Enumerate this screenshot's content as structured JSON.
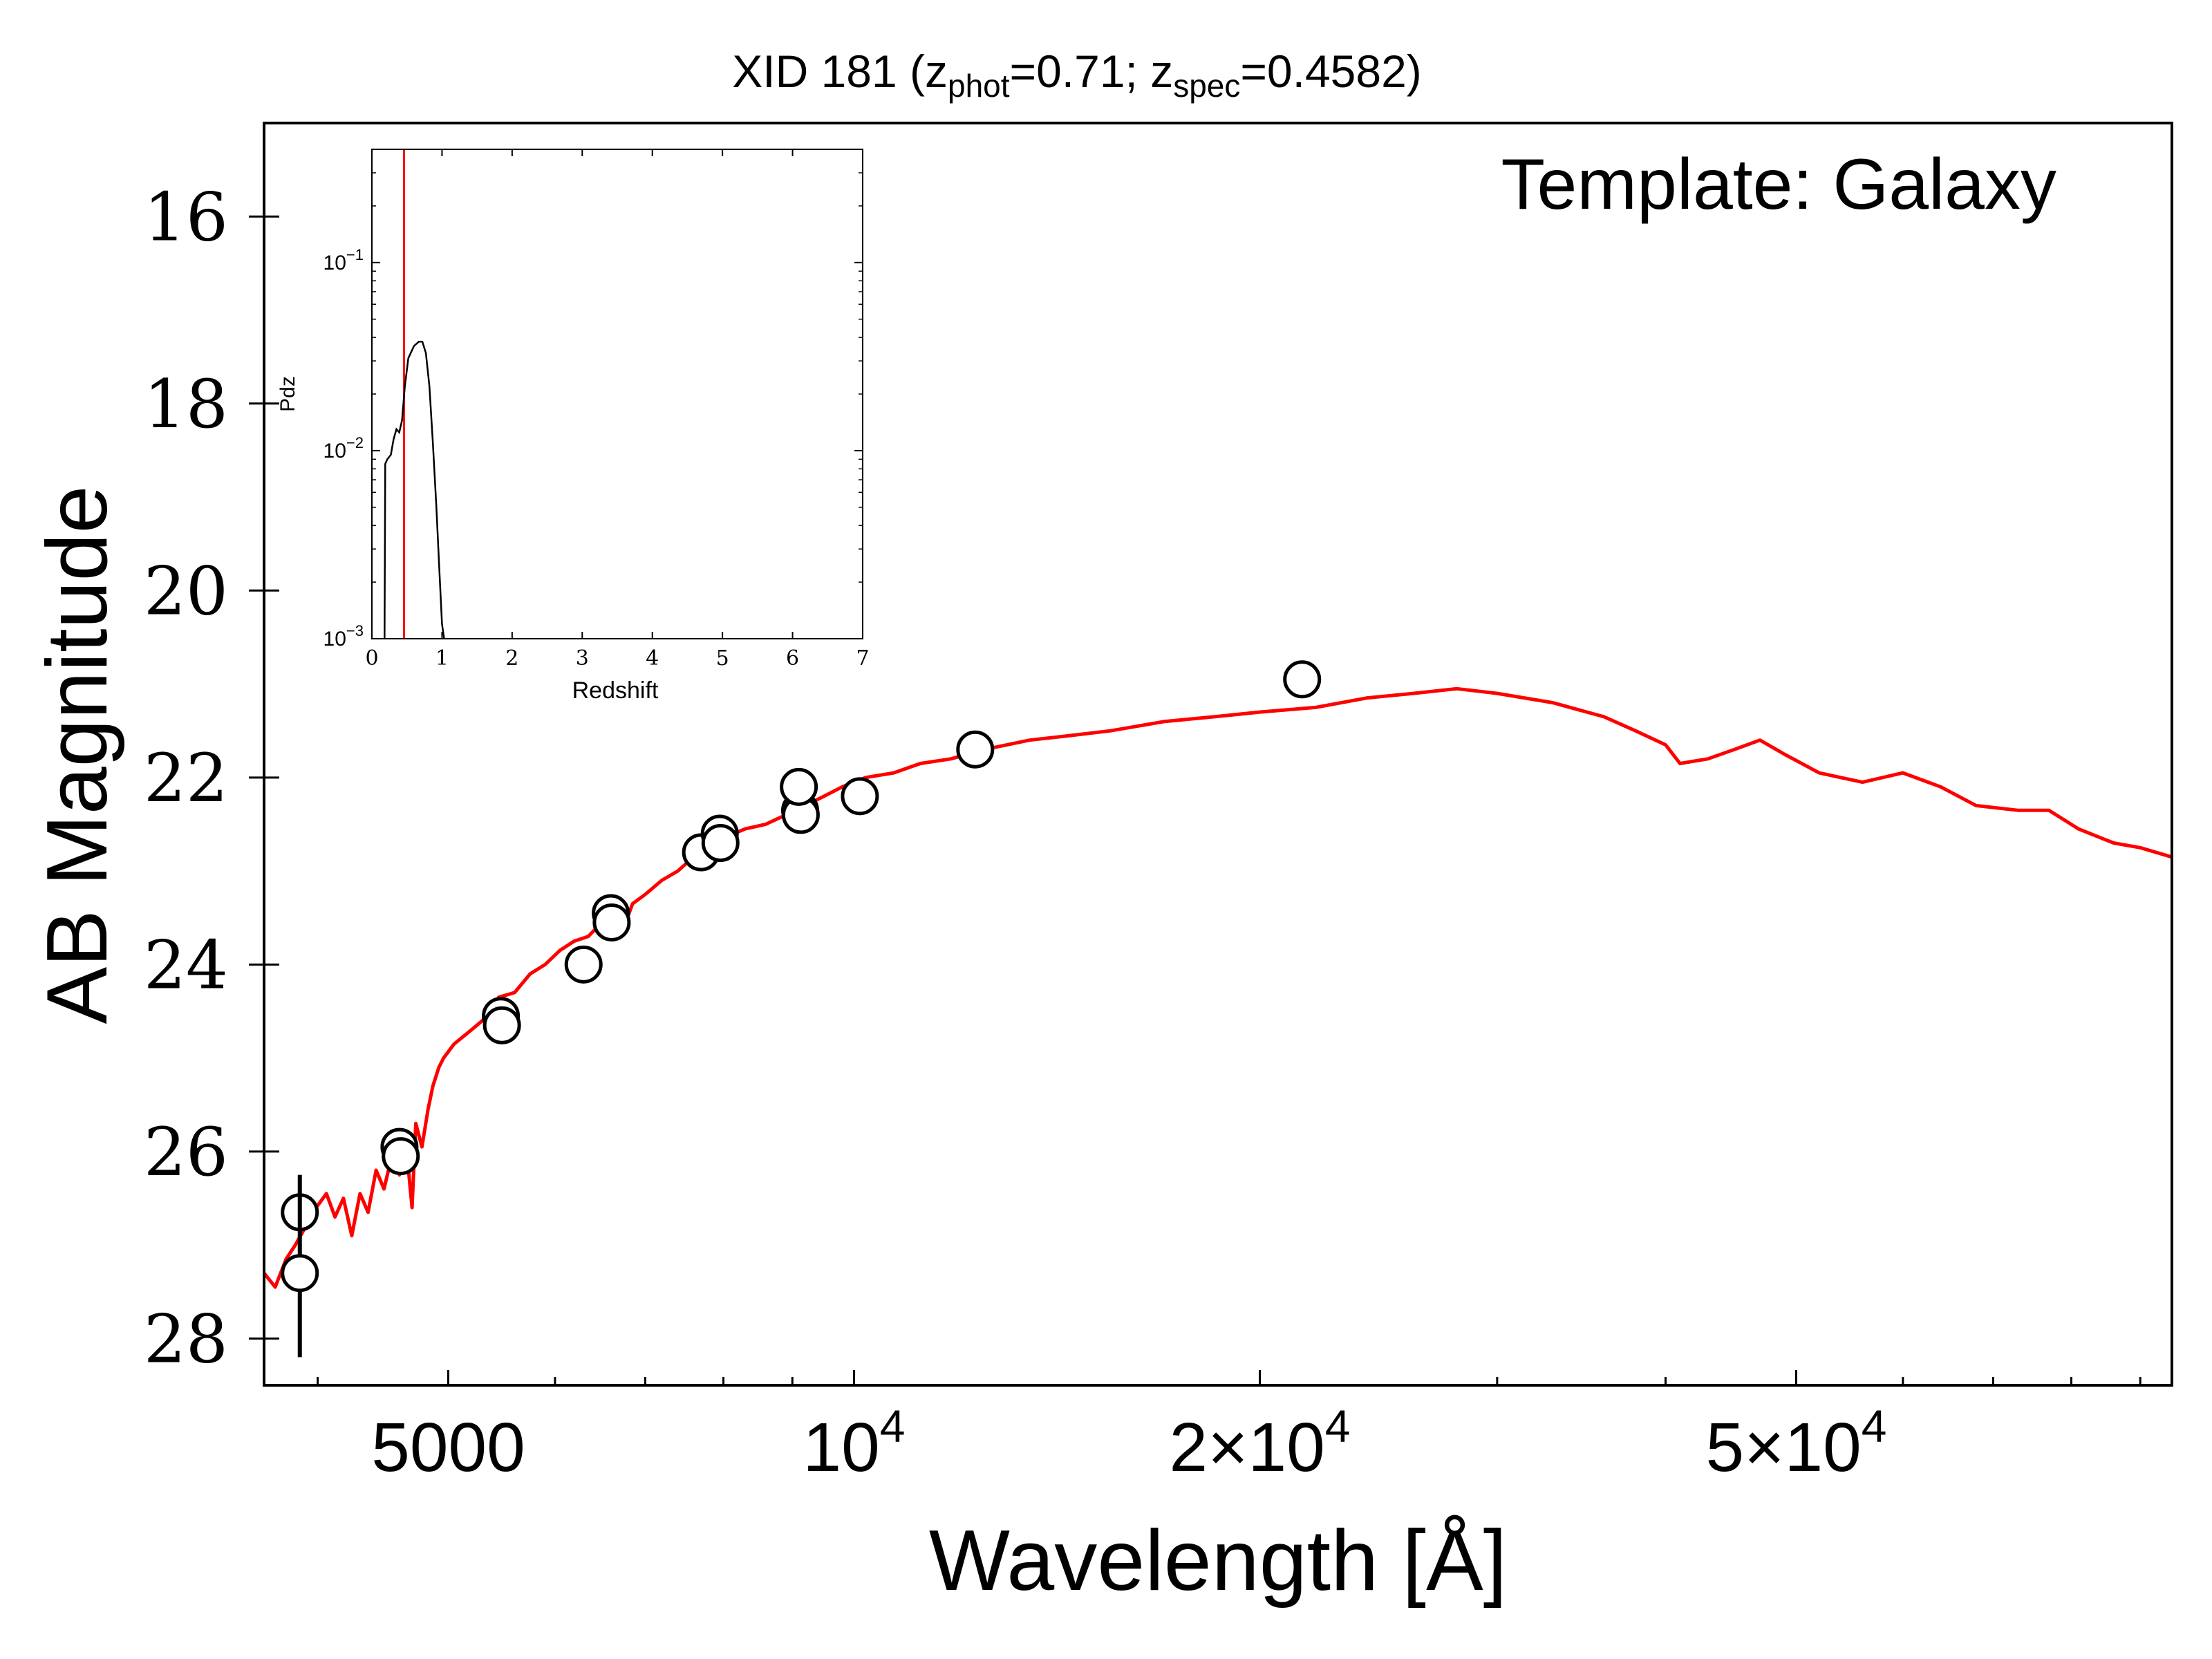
{
  "chart_data": [
    {
      "type": "scatter",
      "title": {
        "prefix": "XID 181 (z",
        "phot_sub": "phot",
        "phot_value": "=0.71; z",
        "spec_sub": "spec",
        "spec_value": "=0.4582)"
      },
      "annotation": "Template: Galaxy",
      "xlabel": "Wavelength [Å]",
      "ylabel": "AB Magnitude",
      "xscale": "log",
      "xlim": [
        3650,
        95000
      ],
      "ylim": [
        28.5,
        15.0
      ],
      "y_inverted": true,
      "xticks": [
        {
          "value": 5000,
          "label": "5000"
        },
        {
          "value": 10000,
          "label": "10",
          "sup": "4"
        },
        {
          "value": 20000,
          "label": "2×10",
          "sup": "4"
        },
        {
          "value": 50000,
          "label": "5×10",
          "sup": "4"
        }
      ],
      "yticks": [
        16,
        18,
        20,
        22,
        24,
        26,
        28
      ],
      "series": [
        {
          "kind": "model",
          "color": "#ff0000",
          "points": [
            [
              3650,
              27.3
            ],
            [
              3720,
              27.45
            ],
            [
              3790,
              27.15
            ],
            [
              3850,
              27.0
            ],
            [
              3920,
              26.8
            ],
            [
              3990,
              26.6
            ],
            [
              4060,
              26.45
            ],
            [
              4120,
              26.7
            ],
            [
              4180,
              26.5
            ],
            [
              4240,
              26.9
            ],
            [
              4300,
              26.45
            ],
            [
              4360,
              26.65
            ],
            [
              4420,
              26.2
            ],
            [
              4480,
              26.4
            ],
            [
              4540,
              26.05
            ],
            [
              4600,
              26.25
            ],
            [
              4650,
              25.9
            ],
            [
              4700,
              26.6
            ],
            [
              4730,
              25.7
            ],
            [
              4780,
              25.95
            ],
            [
              4830,
              25.55
            ],
            [
              4870,
              25.3
            ],
            [
              4920,
              25.1
            ],
            [
              4960,
              25.0
            ],
            [
              5050,
              24.85
            ],
            [
              5150,
              24.75
            ],
            [
              5250,
              24.65
            ],
            [
              5350,
              24.55
            ],
            [
              5450,
              24.35
            ],
            [
              5600,
              24.3
            ],
            [
              5750,
              24.1
            ],
            [
              5900,
              24.0
            ],
            [
              6050,
              23.85
            ],
            [
              6200,
              23.75
            ],
            [
              6350,
              23.7
            ],
            [
              6500,
              23.55
            ],
            [
              6650,
              23.45
            ],
            [
              6750,
              23.6
            ],
            [
              6850,
              23.35
            ],
            [
              7000,
              23.25
            ],
            [
              7200,
              23.1
            ],
            [
              7400,
              23.0
            ],
            [
              7600,
              22.85
            ],
            [
              7800,
              22.75
            ],
            [
              8000,
              22.65
            ],
            [
              8300,
              22.55
            ],
            [
              8600,
              22.5
            ],
            [
              8900,
              22.4
            ],
            [
              9200,
              22.3
            ],
            [
              9500,
              22.2
            ],
            [
              9800,
              22.1
            ],
            [
              10200,
              22.0
            ],
            [
              10700,
              21.95
            ],
            [
              11200,
              21.85
            ],
            [
              11800,
              21.8
            ],
            [
              12500,
              21.7
            ],
            [
              13500,
              21.6
            ],
            [
              14500,
              21.55
            ],
            [
              15500,
              21.5
            ],
            [
              17000,
              21.4
            ],
            [
              18500,
              21.35
            ],
            [
              20000,
              21.3
            ],
            [
              22000,
              21.25
            ],
            [
              24000,
              21.15
            ],
            [
              26000,
              21.1
            ],
            [
              28000,
              21.05
            ],
            [
              30000,
              21.1
            ],
            [
              33000,
              21.2
            ],
            [
              36000,
              21.35
            ],
            [
              38000,
              21.5
            ],
            [
              40000,
              21.65
            ],
            [
              41000,
              21.85
            ],
            [
              43000,
              21.8
            ],
            [
              45000,
              21.7
            ],
            [
              47000,
              21.6
            ],
            [
              49000,
              21.75
            ],
            [
              52000,
              21.95
            ],
            [
              56000,
              22.05
            ],
            [
              60000,
              21.95
            ],
            [
              64000,
              22.1
            ],
            [
              68000,
              22.3
            ],
            [
              73000,
              22.35
            ],
            [
              77000,
              22.35
            ],
            [
              81000,
              22.55
            ],
            [
              86000,
              22.7
            ],
            [
              90000,
              22.75
            ],
            [
              95000,
              22.85
            ]
          ]
        },
        {
          "kind": "observed",
          "color": "#000000",
          "points": [
            {
              "x": 3880,
              "y": 26.65
            },
            {
              "x": 3880,
              "y": 27.3,
              "yerr": [
                26.25,
                28.2
              ]
            },
            {
              "x": 4600,
              "y": 25.95
            },
            {
              "x": 4610,
              "y": 26.05
            },
            {
              "x": 5470,
              "y": 24.55
            },
            {
              "x": 5480,
              "y": 24.65
            },
            {
              "x": 6300,
              "y": 24.0
            },
            {
              "x": 6600,
              "y": 23.45
            },
            {
              "x": 6610,
              "y": 23.55
            },
            {
              "x": 7700,
              "y": 22.8
            },
            {
              "x": 7950,
              "y": 22.6
            },
            {
              "x": 7960,
              "y": 22.7
            },
            {
              "x": 9120,
              "y": 22.35
            },
            {
              "x": 9130,
              "y": 22.4
            },
            {
              "x": 9100,
              "y": 22.1
            },
            {
              "x": 10100,
              "y": 22.2
            },
            {
              "x": 12300,
              "y": 21.7
            },
            {
              "x": 21500,
              "y": 20.95
            }
          ]
        }
      ]
    },
    {
      "type": "line",
      "xlabel": "Redshift",
      "ylabel": "Pdz",
      "xlim": [
        0,
        7
      ],
      "ylim": [
        0.001,
        0.4
      ],
      "yscale": "log",
      "xticks": [
        "0",
        "1",
        "2",
        "3",
        "4",
        "5",
        "6",
        "7"
      ],
      "yticks": [
        {
          "value": 0.1,
          "base": "10",
          "sup": "−1"
        },
        {
          "value": 0.01,
          "base": "10",
          "sup": "−2"
        },
        {
          "value": 0.001,
          "base": "10",
          "sup": "−3"
        }
      ],
      "z_spec_line": 0.4582,
      "z_spec_color": "#ff0000",
      "series": [
        {
          "color": "#000000",
          "points": [
            [
              0.18,
              0.001
            ],
            [
              0.19,
              0.0085
            ],
            [
              0.22,
              0.009
            ],
            [
              0.27,
              0.0095
            ],
            [
              0.31,
              0.0115
            ],
            [
              0.35,
              0.013
            ],
            [
              0.39,
              0.0125
            ],
            [
              0.43,
              0.0145
            ],
            [
              0.47,
              0.022
            ],
            [
              0.52,
              0.031
            ],
            [
              0.6,
              0.036
            ],
            [
              0.67,
              0.038
            ],
            [
              0.72,
              0.038
            ],
            [
              0.77,
              0.033
            ],
            [
              0.82,
              0.022
            ],
            [
              0.87,
              0.011
            ],
            [
              0.92,
              0.005
            ],
            [
              0.96,
              0.0024
            ],
            [
              1.0,
              0.0012
            ],
            [
              1.03,
              0.001
            ]
          ]
        }
      ]
    }
  ]
}
